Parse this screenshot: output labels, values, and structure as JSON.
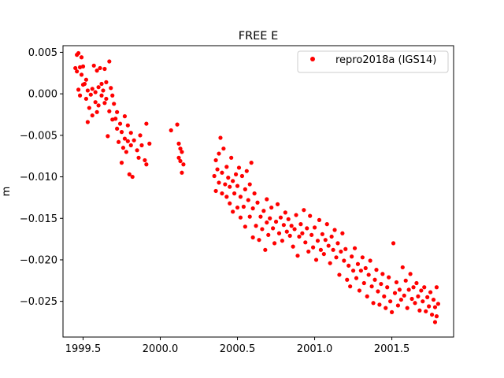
{
  "chart_data": {
    "type": "scatter",
    "title": "FREE E",
    "xlabel": "",
    "ylabel": "m",
    "xlim": [
      1999.37,
      2001.9
    ],
    "ylim": [
      -0.0293,
      0.0058
    ],
    "xticks": [
      1999.5,
      2000.0,
      2000.5,
      2001.0,
      2001.5
    ],
    "xtick_labels": [
      "1999.5",
      "2000.0",
      "2000.5",
      "2001.0",
      "2001.5"
    ],
    "yticks": [
      0.005,
      0.0,
      -0.005,
      -0.01,
      -0.015,
      -0.02,
      -0.025
    ],
    "ytick_labels": [
      "0.005",
      "0.000",
      "−0.005",
      "−0.010",
      "−0.015",
      "−0.020",
      "−0.025"
    ],
    "grid": false,
    "legend": {
      "position": "top-right"
    },
    "series": [
      {
        "name": "repro2018a (IGS14)",
        "color": "#ff0000",
        "marker": "circle",
        "points": [
          [
            1999.45,
            0.0031
          ],
          [
            1999.46,
            0.0047
          ],
          [
            1999.46,
            0.0027
          ],
          [
            1999.47,
            0.0049
          ],
          [
            1999.47,
            0.0005
          ],
          [
            1999.48,
            0.0032
          ],
          [
            1999.48,
            -0.0002
          ],
          [
            1999.49,
            0.0044
          ],
          [
            1999.49,
            0.0023
          ],
          [
            1999.5,
            0.0011
          ],
          [
            1999.5,
            0.0033
          ],
          [
            1999.51,
            0.0012
          ],
          [
            1999.52,
            -0.0006
          ],
          [
            1999.52,
            0.0017
          ],
          [
            1999.53,
            -0.0034
          ],
          [
            1999.53,
            0.0004
          ],
          [
            1999.54,
            -0.0017
          ],
          [
            1999.55,
            -0.0001
          ],
          [
            1999.56,
            0.0006
          ],
          [
            1999.56,
            -0.0026
          ],
          [
            1999.57,
            0.0034
          ],
          [
            1999.58,
            -0.001
          ],
          [
            1999.58,
            0.0002
          ],
          [
            1999.59,
            -0.0022
          ],
          [
            1999.59,
            0.0028
          ],
          [
            1999.6,
            0.0008
          ],
          [
            1999.6,
            -0.0014
          ],
          [
            1999.61,
            0.0031
          ],
          [
            1999.62,
            -0.0002
          ],
          [
            1999.62,
            0.0012
          ],
          [
            1999.63,
            0.0004
          ],
          [
            1999.64,
            -0.0011
          ],
          [
            1999.64,
            0.003
          ],
          [
            1999.65,
            -0.0006
          ],
          [
            1999.65,
            0.0014
          ],
          [
            1999.66,
            -0.0051
          ],
          [
            1999.67,
            -0.0021
          ],
          [
            1999.67,
            0.0039
          ],
          [
            1999.68,
            0.0007
          ],
          [
            1999.69,
            -0.0002
          ],
          [
            1999.69,
            -0.0031
          ],
          [
            1999.7,
            -0.0012
          ],
          [
            1999.71,
            -0.003
          ],
          [
            1999.72,
            -0.0042
          ],
          [
            1999.72,
            -0.0022
          ],
          [
            1999.73,
            -0.0058
          ],
          [
            1999.74,
            -0.0036
          ],
          [
            1999.75,
            -0.0046
          ],
          [
            1999.75,
            -0.0083
          ],
          [
            1999.76,
            -0.0065
          ],
          [
            1999.77,
            -0.0054
          ],
          [
            1999.77,
            -0.0027
          ],
          [
            1999.78,
            -0.007
          ],
          [
            1999.79,
            -0.0057
          ],
          [
            1999.79,
            -0.0038
          ],
          [
            1999.8,
            -0.0097
          ],
          [
            1999.81,
            -0.0062
          ],
          [
            1999.81,
            -0.0047
          ],
          [
            1999.82,
            -0.01
          ],
          [
            1999.83,
            -0.0056
          ],
          [
            1999.85,
            -0.0068
          ],
          [
            1999.86,
            -0.0077
          ],
          [
            1999.87,
            -0.005
          ],
          [
            1999.88,
            -0.0062
          ],
          [
            1999.9,
            -0.008
          ],
          [
            1999.91,
            -0.0036
          ],
          [
            1999.91,
            -0.0085
          ],
          [
            1999.93,
            -0.006
          ],
          [
            2000.07,
            -0.0044
          ],
          [
            2000.11,
            -0.0037
          ],
          [
            2000.12,
            -0.006
          ],
          [
            2000.12,
            -0.0077
          ],
          [
            2000.13,
            -0.0066
          ],
          [
            2000.13,
            -0.0081
          ],
          [
            2000.14,
            -0.007
          ],
          [
            2000.14,
            -0.0095
          ],
          [
            2000.15,
            -0.0085
          ],
          [
            2000.35,
            -0.0099
          ],
          [
            2000.36,
            -0.008
          ],
          [
            2000.36,
            -0.0117
          ],
          [
            2000.37,
            -0.0091
          ],
          [
            2000.38,
            -0.0107
          ],
          [
            2000.38,
            -0.0072
          ],
          [
            2000.39,
            -0.0053
          ],
          [
            2000.4,
            -0.012
          ],
          [
            2000.4,
            -0.0095
          ],
          [
            2000.41,
            -0.0066
          ],
          [
            2000.42,
            -0.0109
          ],
          [
            2000.43,
            -0.0088
          ],
          [
            2000.43,
            -0.0124
          ],
          [
            2000.44,
            -0.0101
          ],
          [
            2000.45,
            -0.0132
          ],
          [
            2000.45,
            -0.0112
          ],
          [
            2000.46,
            -0.0077
          ],
          [
            2000.47,
            -0.0142
          ],
          [
            2000.47,
            -0.0105
          ],
          [
            2000.48,
            -0.012
          ],
          [
            2000.49,
            -0.0097
          ],
          [
            2000.5,
            -0.0137
          ],
          [
            2000.5,
            -0.0111
          ],
          [
            2000.51,
            -0.0089
          ],
          [
            2000.52,
            -0.0149
          ],
          [
            2000.52,
            -0.0124
          ],
          [
            2000.53,
            -0.0099
          ],
          [
            2000.54,
            -0.0136
          ],
          [
            2000.55,
            -0.0115
          ],
          [
            2000.55,
            -0.016
          ],
          [
            2000.56,
            -0.0093
          ],
          [
            2000.57,
            -0.0128
          ],
          [
            2000.58,
            -0.0148
          ],
          [
            2000.58,
            -0.0109
          ],
          [
            2000.59,
            -0.0083
          ],
          [
            2000.6,
            -0.0173
          ],
          [
            2000.6,
            -0.0138
          ],
          [
            2000.61,
            -0.012
          ],
          [
            2000.62,
            -0.0159
          ],
          [
            2000.63,
            -0.0131
          ],
          [
            2000.64,
            -0.0176
          ],
          [
            2000.65,
            -0.0148
          ],
          [
            2000.66,
            -0.0163
          ],
          [
            2000.67,
            -0.0141
          ],
          [
            2000.68,
            -0.0188
          ],
          [
            2000.69,
            -0.0155
          ],
          [
            2000.69,
            -0.0127
          ],
          [
            2000.7,
            -0.017
          ],
          [
            2000.71,
            -0.015
          ],
          [
            2000.72,
            -0.0137
          ],
          [
            2000.73,
            -0.0162
          ],
          [
            2000.74,
            -0.018
          ],
          [
            2000.75,
            -0.0154
          ],
          [
            2000.76,
            -0.0133
          ],
          [
            2000.77,
            -0.0168
          ],
          [
            2000.78,
            -0.0149
          ],
          [
            2000.79,
            -0.0177
          ],
          [
            2000.8,
            -0.0158
          ],
          [
            2000.81,
            -0.0143
          ],
          [
            2000.82,
            -0.0166
          ],
          [
            2000.83,
            -0.0151
          ],
          [
            2000.84,
            -0.0171
          ],
          [
            2000.85,
            -0.0159
          ],
          [
            2000.86,
            -0.0184
          ],
          [
            2000.87,
            -0.0163
          ],
          [
            2000.88,
            -0.0146
          ],
          [
            2000.89,
            -0.0195
          ],
          [
            2000.9,
            -0.0172
          ],
          [
            2000.91,
            -0.0157
          ],
          [
            2000.92,
            -0.0168
          ],
          [
            2000.93,
            -0.014
          ],
          [
            2000.94,
            -0.0179
          ],
          [
            2000.95,
            -0.0162
          ],
          [
            2000.96,
            -0.019
          ],
          [
            2000.97,
            -0.0147
          ],
          [
            2000.98,
            -0.017
          ],
          [
            2000.99,
            -0.0185
          ],
          [
            2001.0,
            -0.0161
          ],
          [
            2001.01,
            -0.02
          ],
          [
            2001.02,
            -0.0177
          ],
          [
            2001.03,
            -0.0152
          ],
          [
            2001.04,
            -0.0188
          ],
          [
            2001.05,
            -0.0169
          ],
          [
            2001.06,
            -0.0193
          ],
          [
            2001.07,
            -0.0176
          ],
          [
            2001.08,
            -0.0157
          ],
          [
            2001.09,
            -0.0183
          ],
          [
            2001.1,
            -0.0204
          ],
          [
            2001.11,
            -0.0172
          ],
          [
            2001.12,
            -0.0188
          ],
          [
            2001.13,
            -0.0164
          ],
          [
            2001.14,
            -0.0197
          ],
          [
            2001.15,
            -0.018
          ],
          [
            2001.16,
            -0.0218
          ],
          [
            2001.17,
            -0.019
          ],
          [
            2001.18,
            -0.0168
          ],
          [
            2001.19,
            -0.0201
          ],
          [
            2001.2,
            -0.0187
          ],
          [
            2001.21,
            -0.0224
          ],
          [
            2001.22,
            -0.0207
          ],
          [
            2001.23,
            -0.0232
          ],
          [
            2001.24,
            -0.0196
          ],
          [
            2001.25,
            -0.0213
          ],
          [
            2001.26,
            -0.0186
          ],
          [
            2001.27,
            -0.0222
          ],
          [
            2001.28,
            -0.0205
          ],
          [
            2001.29,
            -0.0237
          ],
          [
            2001.3,
            -0.0213
          ],
          [
            2001.31,
            -0.0197
          ],
          [
            2001.32,
            -0.0228
          ],
          [
            2001.33,
            -0.021
          ],
          [
            2001.34,
            -0.0244
          ],
          [
            2001.35,
            -0.0218
          ],
          [
            2001.36,
            -0.0201
          ],
          [
            2001.37,
            -0.0232
          ],
          [
            2001.38,
            -0.0252
          ],
          [
            2001.39,
            -0.0224
          ],
          [
            2001.4,
            -0.0212
          ],
          [
            2001.41,
            -0.0238
          ],
          [
            2001.42,
            -0.0254
          ],
          [
            2001.43,
            -0.0229
          ],
          [
            2001.44,
            -0.0217
          ],
          [
            2001.45,
            -0.0244
          ],
          [
            2001.46,
            -0.0258
          ],
          [
            2001.47,
            -0.0233
          ],
          [
            2001.48,
            -0.0221
          ],
          [
            2001.49,
            -0.025
          ],
          [
            2001.5,
            -0.0263
          ],
          [
            2001.51,
            -0.018
          ],
          [
            2001.52,
            -0.024
          ],
          [
            2001.53,
            -0.0227
          ],
          [
            2001.54,
            -0.0255
          ],
          [
            2001.55,
            -0.0236
          ],
          [
            2001.56,
            -0.0248
          ],
          [
            2001.57,
            -0.0209
          ],
          [
            2001.58,
            -0.0243
          ],
          [
            2001.59,
            -0.0225
          ],
          [
            2001.6,
            -0.0258
          ],
          [
            2001.61,
            -0.0236
          ],
          [
            2001.62,
            -0.0217
          ],
          [
            2001.63,
            -0.0247
          ],
          [
            2001.64,
            -0.0233
          ],
          [
            2001.65,
            -0.0252
          ],
          [
            2001.66,
            -0.0228
          ],
          [
            2001.67,
            -0.0244
          ],
          [
            2001.68,
            -0.0261
          ],
          [
            2001.69,
            -0.0237
          ],
          [
            2001.7,
            -0.025
          ],
          [
            2001.71,
            -0.0233
          ],
          [
            2001.72,
            -0.0262
          ],
          [
            2001.73,
            -0.0245
          ],
          [
            2001.74,
            -0.0256
          ],
          [
            2001.75,
            -0.0239
          ],
          [
            2001.76,
            -0.0266
          ],
          [
            2001.77,
            -0.0248
          ],
          [
            2001.78,
            -0.0275
          ],
          [
            2001.78,
            -0.0257
          ],
          [
            2001.79,
            -0.0233
          ],
          [
            2001.79,
            -0.0268
          ],
          [
            2001.8,
            -0.0253
          ]
        ]
      }
    ]
  }
}
